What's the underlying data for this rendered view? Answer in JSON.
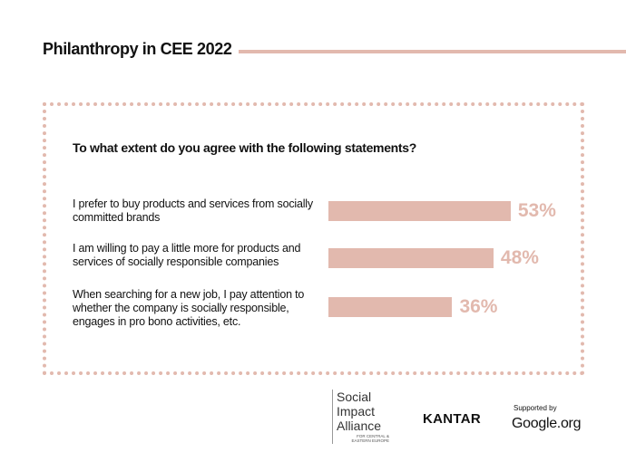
{
  "chart_data": {
    "type": "bar",
    "orientation": "horizontal",
    "title": "Philanthropy in CEE 2022",
    "subtitle": "To what extent do you agree with the following statements?",
    "categories": [
      "I prefer to buy products and services from socially committed brands",
      "I am willing to pay a little more for products and services of socially responsible companies",
      "When searching for a new job, I pay attention to whether the company is socially responsible, engages in pro bono activities, etc."
    ],
    "values": [
      53,
      48,
      36
    ],
    "value_labels": [
      "53%",
      "48%",
      "36%"
    ],
    "color": "#e2b9ae"
  },
  "footer": {
    "sia_name": "Social Impact Alliance",
    "sia_sub": "FOR CENTRAL & EASTERN EUROPE",
    "kantar": "KANTAR",
    "supported_by": "Supported by",
    "google": "Google.org"
  }
}
